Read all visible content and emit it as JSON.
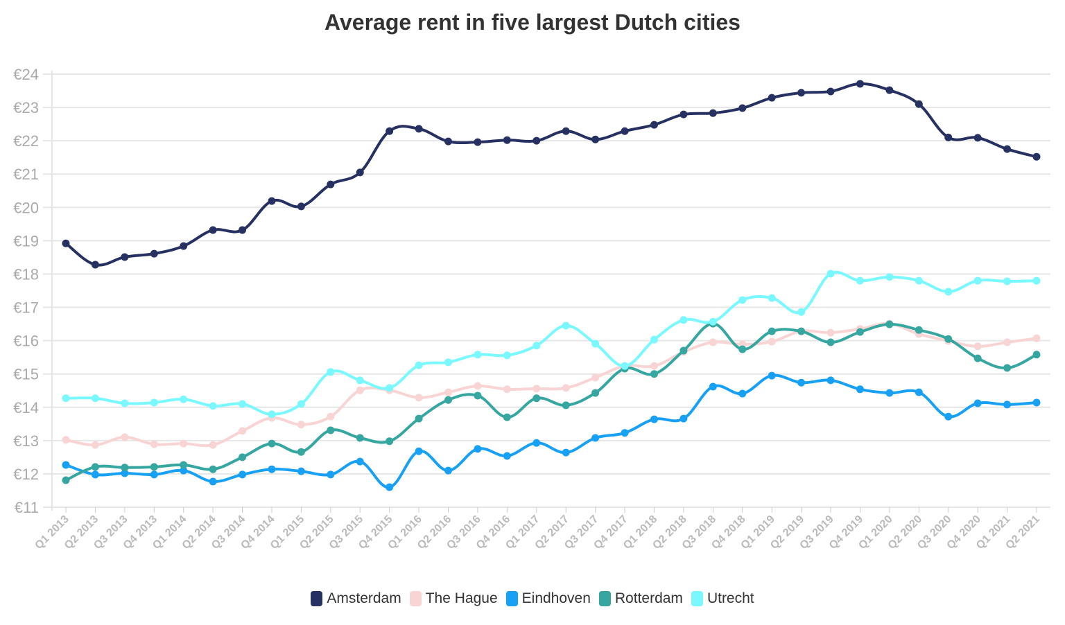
{
  "chart_data": {
    "type": "line",
    "title": "Average rent in five largest Dutch cities",
    "xlabel": "",
    "ylabel": "",
    "ylim": [
      11,
      24
    ],
    "yticks": [
      "€11",
      "€12",
      "€13",
      "€14",
      "€15",
      "€16",
      "€17",
      "€18",
      "€19",
      "€20",
      "€21",
      "€22",
      "€23",
      "€24"
    ],
    "grid": true,
    "legend_position": "bottom",
    "categories": [
      "Q1 2013",
      "Q2 2013",
      "Q3 2013",
      "Q4 2013",
      "Q1 2014",
      "Q2 2014",
      "Q3 2014",
      "Q4 2014",
      "Q1 2015",
      "Q2 2015",
      "Q3 2015",
      "Q4 2015",
      "Q1 2016",
      "Q2 2016",
      "Q3 2016",
      "Q4 2016",
      "Q1 2017",
      "Q2 2017",
      "Q3 2017",
      "Q4 2017",
      "Q1 2018",
      "Q2 2018",
      "Q3 2018",
      "Q4 2018",
      "Q1 2019",
      "Q2 2019",
      "Q3 2019",
      "Q4 2019",
      "Q1 2020",
      "Q2 2020",
      "Q3 2020",
      "Q4 2020",
      "Q1 2021",
      "Q2 2021"
    ],
    "series": [
      {
        "name": "Amsterdam",
        "color": "#263161",
        "values": [
          18.92,
          18.28,
          18.51,
          18.61,
          18.84,
          19.32,
          19.32,
          20.19,
          20.03,
          20.69,
          21.05,
          22.29,
          22.36,
          21.98,
          21.96,
          22.02,
          22.0,
          22.29,
          22.04,
          22.29,
          22.48,
          22.79,
          22.83,
          22.98,
          23.29,
          23.44,
          23.48,
          23.71,
          23.52,
          23.1,
          22.1,
          22.09,
          21.75,
          21.52
        ]
      },
      {
        "name": "The Hague",
        "color": "#f9d4d4",
        "values": [
          13.02,
          12.87,
          13.1,
          12.89,
          12.91,
          12.87,
          13.29,
          13.68,
          13.48,
          13.72,
          14.51,
          14.51,
          14.29,
          14.45,
          14.64,
          14.54,
          14.56,
          14.58,
          14.89,
          15.24,
          15.24,
          15.66,
          15.95,
          15.89,
          15.97,
          16.28,
          16.24,
          16.35,
          16.51,
          16.2,
          15.99,
          15.83,
          15.95,
          16.07
        ]
      },
      {
        "name": "Eindhoven",
        "color": "#18a0f5",
        "values": [
          12.27,
          11.98,
          12.02,
          11.98,
          12.1,
          11.77,
          11.98,
          12.14,
          12.08,
          11.98,
          12.37,
          11.6,
          12.68,
          12.1,
          12.75,
          12.54,
          12.93,
          12.64,
          13.08,
          13.23,
          13.64,
          13.66,
          14.62,
          14.41,
          14.95,
          14.74,
          14.81,
          14.54,
          14.43,
          14.45,
          13.72,
          14.12,
          14.08,
          14.14
        ]
      },
      {
        "name": "Rotterdam",
        "color": "#35a6a0",
        "values": [
          11.81,
          12.21,
          12.19,
          12.21,
          12.27,
          12.14,
          12.5,
          12.91,
          12.66,
          13.31,
          13.08,
          12.98,
          13.66,
          14.22,
          14.35,
          13.7,
          14.27,
          14.06,
          14.43,
          15.16,
          15.0,
          15.7,
          16.51,
          15.74,
          16.28,
          16.28,
          15.95,
          16.26,
          16.49,
          16.32,
          16.05,
          15.47,
          15.18,
          15.58
        ]
      },
      {
        "name": "Utrecht",
        "color": "#7af8ff",
        "values": [
          14.27,
          14.27,
          14.12,
          14.14,
          14.24,
          14.04,
          14.1,
          13.79,
          14.1,
          15.06,
          14.81,
          14.58,
          15.26,
          15.35,
          15.58,
          15.56,
          15.85,
          16.45,
          15.91,
          15.24,
          16.03,
          16.62,
          16.57,
          17.22,
          17.28,
          16.86,
          18.01,
          17.8,
          17.91,
          17.8,
          17.47,
          17.8,
          17.78,
          17.8
        ]
      }
    ]
  }
}
